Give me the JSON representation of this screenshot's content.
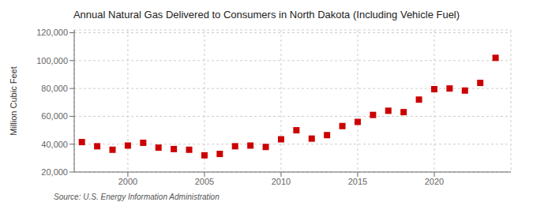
{
  "chart_data": {
    "type": "scatter",
    "title": "Annual Natural Gas Delivered to Consumers in North Dakota (Including Vehicle Fuel)",
    "ylabel": "Million Cubic Feet",
    "annotation": "Source: U.S. Energy Information Administration",
    "x": [
      1997,
      1998,
      1999,
      2000,
      2001,
      2002,
      2003,
      2004,
      2005,
      2006,
      2007,
      2008,
      2009,
      2010,
      2011,
      2012,
      2013,
      2014,
      2015,
      2016,
      2017,
      2018,
      2019,
      2020,
      2021,
      2022,
      2023,
      2024
    ],
    "values": [
      41500,
      38500,
      36000,
      39000,
      41000,
      37500,
      36500,
      36000,
      32000,
      33000,
      38500,
      39000,
      38000,
      43500,
      50000,
      44000,
      46500,
      53000,
      56000,
      61000,
      64000,
      63000,
      72000,
      79500,
      80000,
      78500,
      84000,
      102000
    ],
    "color": "#cc0000",
    "marker": "square",
    "grid": true,
    "xlim": [
      1996.5,
      2025
    ],
    "xticks": [
      2000,
      2005,
      2010,
      2015,
      2020
    ],
    "ylim": [
      20000,
      122000
    ],
    "yticks": [
      {
        "value": 20000,
        "label": "20,000"
      },
      {
        "value": 40000,
        "label": "40,000"
      },
      {
        "value": 60000,
        "label": "60,000"
      },
      {
        "value": 80000,
        "label": "80,000"
      },
      {
        "value": 100000,
        "label": "100,000"
      },
      {
        "value": 120000,
        "label": "120,000"
      }
    ]
  }
}
